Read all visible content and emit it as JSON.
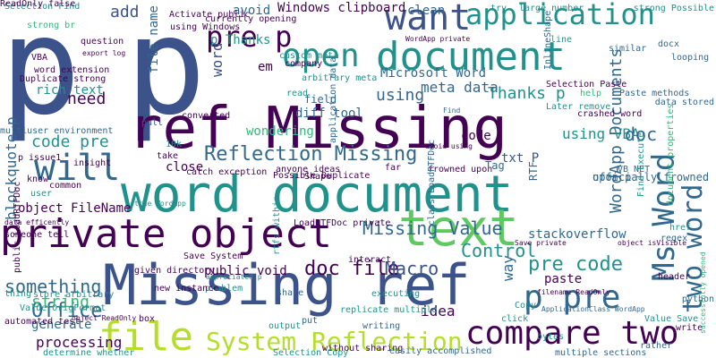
{
  "palette": {
    "dark_purple": "#440154",
    "indigo": "#3b528b",
    "blue": "#31688e",
    "teal": "#21918c",
    "green": "#35b779",
    "light_green": "#5ec962",
    "lime": "#b5de2b",
    "yellow": "#d2e21b"
  },
  "words": [
    "p",
    "p",
    "ref Missing",
    "word document",
    "Missing ref",
    "private object",
    "text",
    "document",
    "open",
    "application",
    "want",
    "pre p",
    "compare two",
    "file",
    "Ms Word",
    "two word",
    "will",
    "System Reflection",
    "p pre",
    "Reflection Missing",
    "code pre",
    "blockquote p",
    "Missing Value",
    "doc file",
    "Macro",
    "Office",
    "something",
    "string",
    "WordApp Documents",
    "Control",
    "pre code",
    "need",
    "Thanks p",
    "using VBA",
    "add",
    "Windows clipboard",
    "meta data",
    "using",
    "doc",
    "way",
    "idea",
    "processing",
    "generate",
    "clean",
    "field",
    "Microsoft Word",
    "word",
    "file name",
    "p Thanks",
    "avoid",
    "rich text",
    "stackoverflow",
    "paste",
    "code",
    "txt P",
    "object FileName",
    "public void",
    "close",
    "diff tool",
    "Selection Find",
    "Duplicate strong",
    "word extension",
    "question",
    "multiuser environment",
    "p issue1",
    "pull",
    "wondering",
    "em",
    "Shape",
    "take",
    "catch exception",
    "anyone ideas",
    "Possible Duplicate",
    "frowned upon",
    "far",
    "officially frowned",
    "upon p",
    "regex",
    "python",
    "problem",
    "store arbitrary",
    "thing",
    "automated test",
    "bytes",
    "Copy",
    "click",
    "executing",
    "interact",
    "share",
    "put",
    "box",
    "output",
    "writing",
    "rather",
    "write",
    "successfully opened",
    "without sharing",
    "easily accomplished",
    "multiple sections",
    "Selection Copy",
    "determine whether",
    "Value OrigFormat",
    "object ReadOnly",
    "Save private",
    "object isVisible",
    "public LoadRTFDoc",
    "LoadRTFDoc private",
    "rtfs within",
    "given directory",
    "new instance",
    "appreciated p",
    "Save System",
    "VBA",
    "strong br",
    "export log",
    "Activate public",
    "using Windows",
    "currently opening",
    "company",
    "arbitrary meta",
    "custom meta",
    "read",
    "converted",
    "10k",
    "common",
    "insight",
    "know",
    "user",
    "data efficently",
    "someone tell",
    "class LoadRTFDoc",
    "Tag",
    "RTF",
    "VB NET",
    "Find Execute",
    "document properties",
    "crashed word",
    "Paste methods",
    "looping",
    "docx",
    "similar",
    "line",
    "strong Possible",
    "InlineShape",
    "Selection Paste",
    "Later remove",
    "data stored",
    "help",
    "try",
    "large number",
    "application data",
    "href",
    "header",
    "Value Save",
    "replicate multiple",
    "avoid using",
    "WordApp private",
    "ApplicationClass WordApp",
    "true WordApp",
    "filename ReadOnly",
    "Find",
    "ReadOnly false"
  ]
}
